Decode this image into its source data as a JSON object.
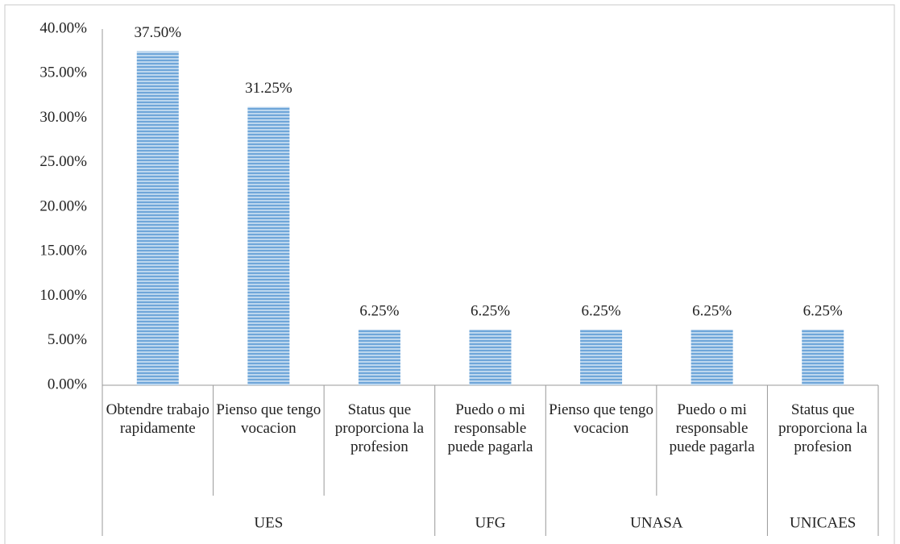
{
  "chart_data": {
    "type": "bar",
    "categories": [
      "Obtendre trabajo rapidamente",
      "Pienso que tengo vocacion",
      "Status que proporciona la profesion",
      "Puedo o mi responsable puede pagarla",
      "Pienso que tengo vocacion",
      "Puedo o mi responsable puede pagarla",
      "Status que proporciona la profesion"
    ],
    "category_groups": [
      "UES",
      "UES",
      "UES",
      "UFG",
      "UNASA",
      "UNASA",
      "UNICAES"
    ],
    "values": [
      37.5,
      31.25,
      6.25,
      6.25,
      6.25,
      6.25,
      6.25
    ],
    "value_labels": [
      "37.50%",
      "31.25%",
      "6.25%",
      "6.25%",
      "6.25%",
      "6.25%",
      "6.25%"
    ],
    "color": "#9dc3e6",
    "ylim": [
      0,
      40
    ],
    "yticks": [
      {
        "value": 0,
        "label": "0.00%"
      },
      {
        "value": 5,
        "label": "5.00%"
      },
      {
        "value": 10,
        "label": "10.00%"
      },
      {
        "value": 15,
        "label": "15.00%"
      },
      {
        "value": 20,
        "label": "20.00%"
      },
      {
        "value": 25,
        "label": "25.00%"
      },
      {
        "value": 30,
        "label": "30.00%"
      },
      {
        "value": 35,
        "label": "35.00%"
      },
      {
        "value": 40,
        "label": "40.00%"
      }
    ],
    "grid": false
  }
}
